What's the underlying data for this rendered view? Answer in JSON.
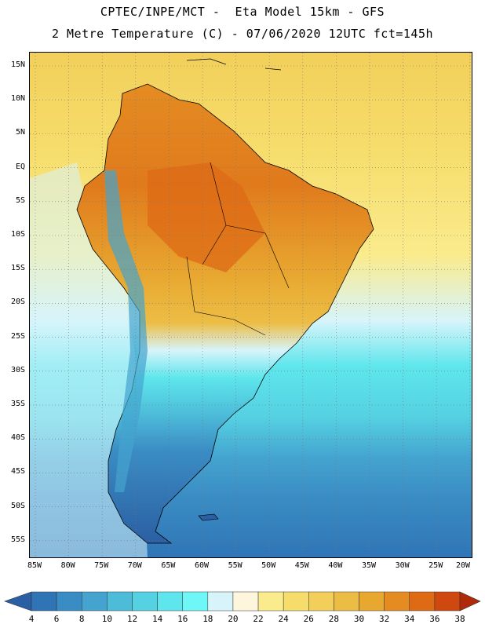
{
  "header": {
    "line1": "CPTEC/INPE/MCT -  Eta Model 15km - GFS",
    "line2": "2 Metre Temperature (C) - 07/06/2020 12UTC fct=145h"
  },
  "map": {
    "lat_labels": [
      "15N",
      "10N",
      "5N",
      "EQ",
      "5S",
      "10S",
      "15S",
      "20S",
      "25S",
      "30S",
      "35S",
      "40S",
      "45S",
      "50S",
      "55S"
    ],
    "lon_labels": [
      "85W",
      "80W",
      "75W",
      "70W",
      "65W",
      "60W",
      "55W",
      "50W",
      "45W",
      "40W",
      "35W",
      "30W",
      "25W",
      "20W"
    ]
  },
  "colorbar": {
    "levels": [
      "4",
      "6",
      "8",
      "10",
      "12",
      "14",
      "16",
      "18",
      "20",
      "22",
      "24",
      "26",
      "28",
      "30",
      "32",
      "34",
      "36",
      "38"
    ],
    "colors": [
      "#2b5fa3",
      "#2f74b5",
      "#3a8cc4",
      "#44a4cf",
      "#4dbcd9",
      "#55d1e2",
      "#5ee6ec",
      "#6ff7f7",
      "#d7f4fb",
      "#fdf5dc",
      "#faeb8c",
      "#f6dc6a",
      "#f2cf5a",
      "#ecbd45",
      "#e8a830",
      "#e48c22",
      "#de6a16",
      "#cf4810",
      "#b02a0a"
    ]
  }
}
